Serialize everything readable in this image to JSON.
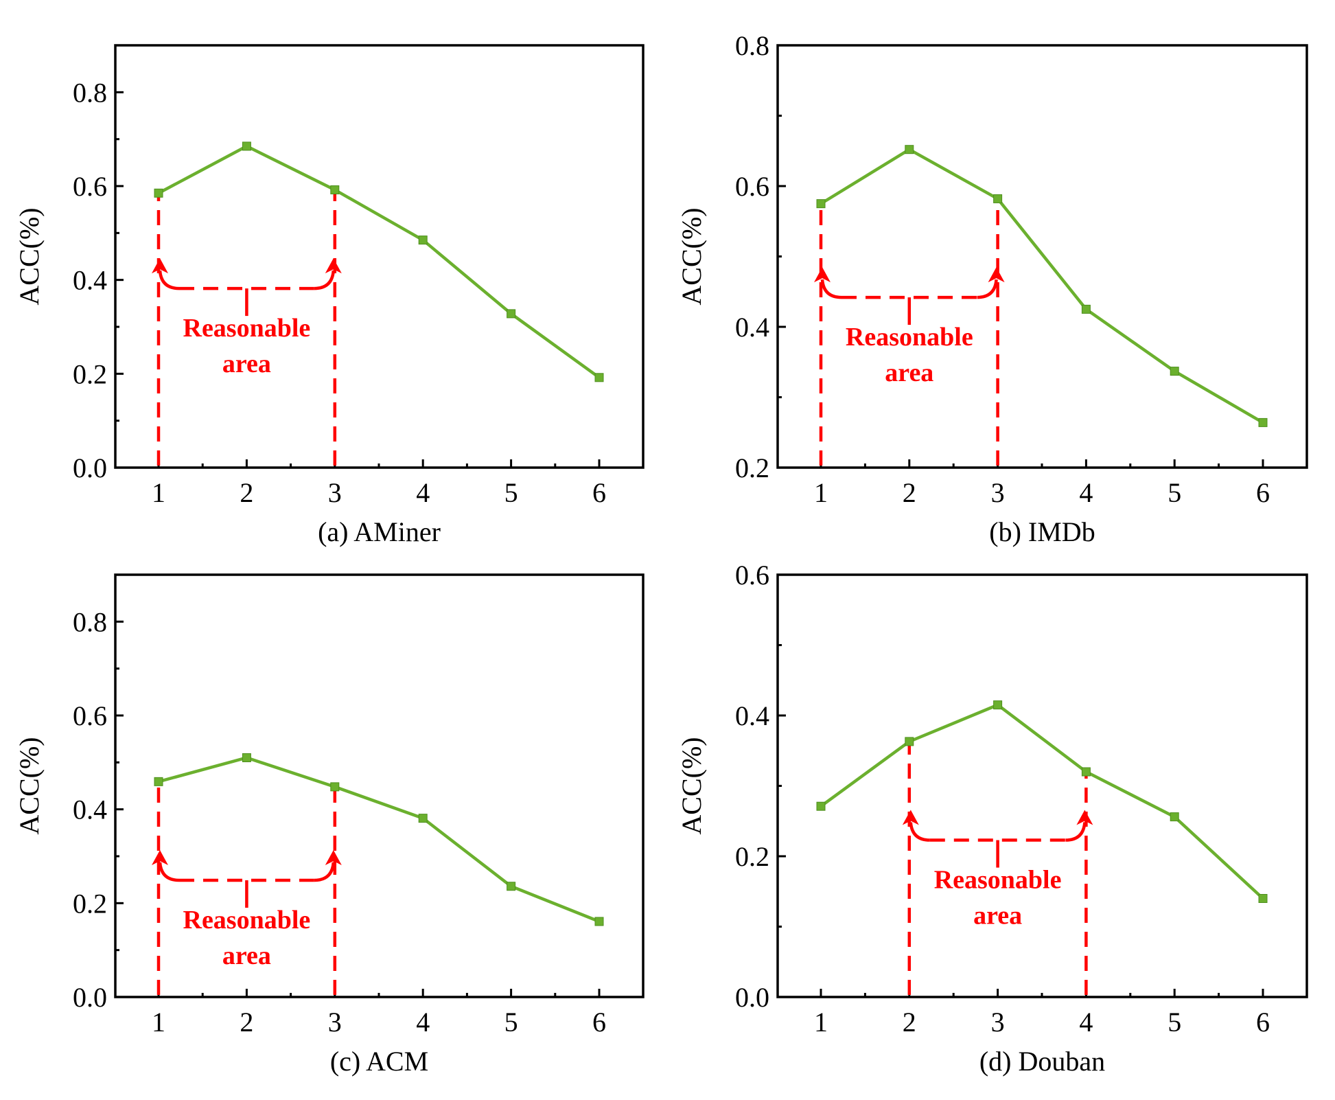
{
  "colors": {
    "line": "#6bb02e",
    "annotation": "#ff0000",
    "axis": "#000000"
  },
  "chart_data": [
    {
      "type": "line",
      "caption": "(a) AMiner",
      "ylabel": "ACC(%)",
      "x": [
        1,
        2,
        3,
        4,
        5,
        6
      ],
      "xticks": [
        "1",
        "2",
        "3",
        "4",
        "5",
        "6"
      ],
      "values": [
        0.585,
        0.685,
        0.592,
        0.485,
        0.328,
        0.192
      ],
      "ylim": [
        0.0,
        0.9
      ],
      "yticks": [
        0.0,
        0.2,
        0.4,
        0.6,
        0.8
      ],
      "ytick_labels": [
        "0.0",
        "0.2",
        "0.4",
        "0.6",
        "0.8"
      ],
      "annotation": {
        "line1": "Reasonable",
        "line2": "area",
        "x_start": 1,
        "x_end": 3
      }
    },
    {
      "type": "line",
      "caption": "(b) IMDb",
      "ylabel": "ACC(%)",
      "x": [
        1,
        2,
        3,
        4,
        5,
        6
      ],
      "xticks": [
        "1",
        "2",
        "3",
        "4",
        "5",
        "6"
      ],
      "values": [
        0.575,
        0.652,
        0.582,
        0.425,
        0.337,
        0.264
      ],
      "ylim": [
        0.2,
        0.8
      ],
      "yticks": [
        0.2,
        0.4,
        0.6,
        0.8
      ],
      "ytick_labels": [
        "0.2",
        "0.4",
        "0.6",
        "0.8"
      ],
      "annotation": {
        "line1": "Reasonable",
        "line2": "area",
        "x_start": 1,
        "x_end": 3
      }
    },
    {
      "type": "line",
      "caption": "(c) ACM",
      "ylabel": "ACC(%)",
      "x": [
        1,
        2,
        3,
        4,
        5,
        6
      ],
      "xticks": [
        "1",
        "2",
        "3",
        "4",
        "5",
        "6"
      ],
      "values": [
        0.459,
        0.51,
        0.448,
        0.381,
        0.236,
        0.161
      ],
      "ylim": [
        0.0,
        0.9
      ],
      "yticks": [
        0.0,
        0.2,
        0.4,
        0.6,
        0.8
      ],
      "ytick_labels": [
        "0.0",
        "0.2",
        "0.4",
        "0.6",
        "0.8"
      ],
      "annotation": {
        "line1": "Reasonable",
        "line2": "area",
        "x_start": 1,
        "x_end": 3
      }
    },
    {
      "type": "line",
      "caption": "(d) Douban",
      "ylabel": "ACC(%)",
      "x": [
        1,
        2,
        3,
        4,
        5,
        6
      ],
      "xticks": [
        "1",
        "2",
        "3",
        "4",
        "5",
        "6"
      ],
      "values": [
        0.271,
        0.363,
        0.415,
        0.32,
        0.256,
        0.14
      ],
      "ylim": [
        0.0,
        0.6
      ],
      "yticks": [
        0.0,
        0.2,
        0.4,
        0.6
      ],
      "ytick_labels": [
        "0.0",
        "0.2",
        "0.4",
        "0.6"
      ],
      "annotation": {
        "line1": "Reasonable",
        "line2": "area",
        "x_start": 2,
        "x_end": 4
      }
    }
  ]
}
